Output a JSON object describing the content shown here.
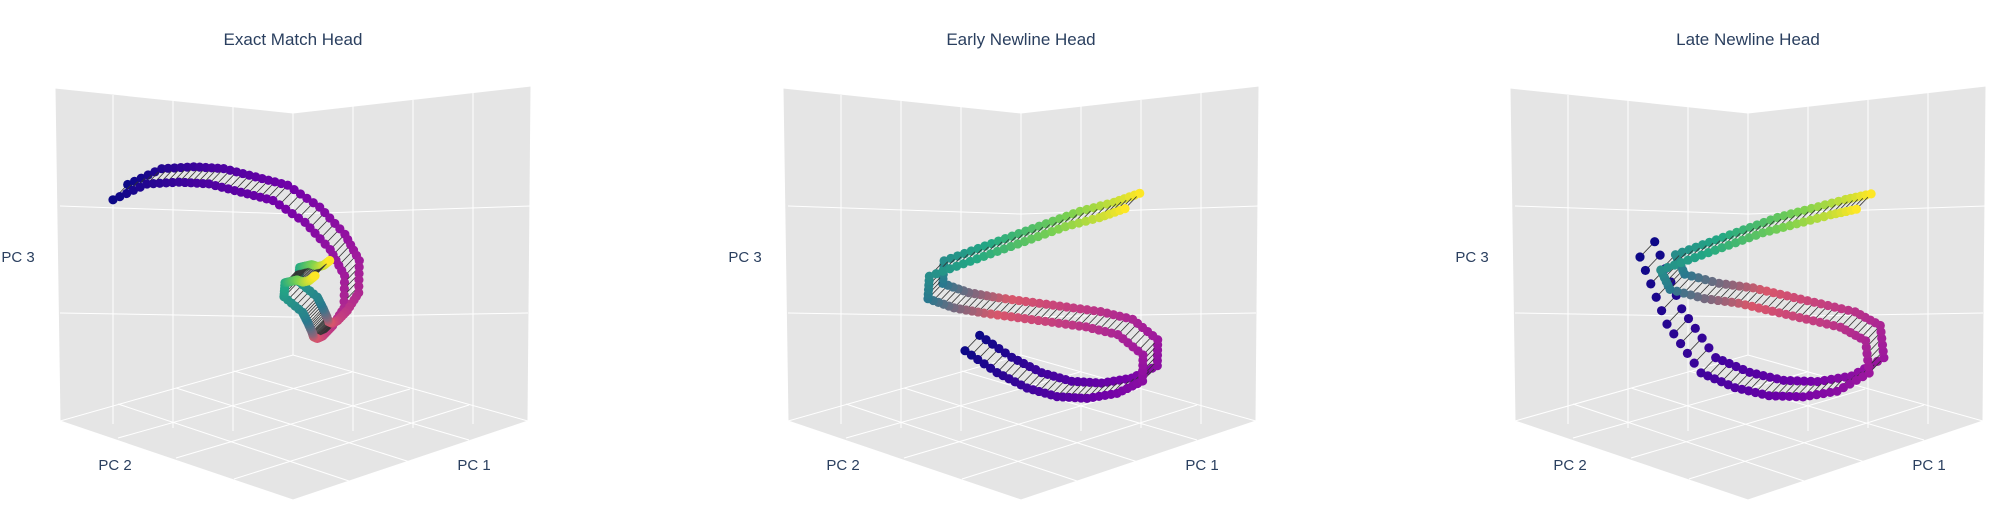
{
  "figure": {
    "panels": [
      {
        "title": "Exact Match Head",
        "axes": {
          "x": "PC 1",
          "y": "PC 2",
          "z": "PC 3"
        }
      },
      {
        "title": "Early Newline Head",
        "axes": {
          "x": "PC 1",
          "y": "PC 2",
          "z": "PC 3"
        }
      },
      {
        "title": "Late Newline Head",
        "axes": {
          "x": "PC 1",
          "y": "PC 2",
          "z": "PC 3"
        }
      }
    ],
    "colors": {
      "scene_background": "#e5e5e5",
      "grid": "#ffffff",
      "connector": "#333333",
      "colorscale": "viridis-plasma"
    }
  },
  "chart_data": [
    {
      "type": "scatter",
      "title": "Exact Match Head",
      "xlabel": "PC 1",
      "ylabel": "PC 2",
      "zlabel": "PC 3",
      "grid": true,
      "series": [
        {
          "values": [
            [
              1,
              9.6,
              7.0
            ],
            [
              2.0,
              9.0,
              7.5
            ],
            [
              3.0,
              8.5,
              7.6
            ],
            [
              4.0,
              8.1,
              7.6
            ],
            [
              5.0,
              7.6,
              7.4
            ],
            [
              6.0,
              7.1,
              7.2
            ],
            [
              7.0,
              6.6,
              6.6
            ],
            [
              7.6,
              6.0,
              5.8
            ],
            [
              7.8,
              5.5,
              5.0
            ],
            [
              7.5,
              5.2,
              4.0
            ],
            [
              6.8,
              5.0,
              3.4
            ],
            [
              6.0,
              4.6,
              3.0
            ],
            [
              5.2,
              4.0,
              2.8
            ],
            [
              4.3,
              3.2,
              2.7
            ],
            [
              3.5,
              2.4,
              2.7
            ],
            [
              2.6,
              1.6,
              2.8
            ],
            [
              1.8,
              1.0,
              3.0
            ],
            [
              0.5,
              0.5,
              3.3
            ],
            [
              1.0,
              1.0,
              3.8
            ],
            [
              2.0,
              1.8,
              4.0
            ],
            [
              3.0,
              2.6,
              4.2
            ],
            [
              4.0,
              3.4,
              4.3
            ],
            [
              5.0,
              4.2,
              4.5
            ],
            [
              6.0,
              5.0,
              4.8
            ]
          ]
        }
      ]
    },
    {
      "type": "scatter",
      "title": "Early Newline Head",
      "xlabel": "PC 1",
      "ylabel": "PC 2",
      "zlabel": "PC 3",
      "grid": true,
      "series": [
        {
          "values": [
            [
              2.0,
              4.5,
              2.2
            ],
            [
              3.0,
              4.0,
              1.6
            ],
            [
              4.0,
              3.6,
              1.2
            ],
            [
              5.0,
              3.2,
              1.0
            ],
            [
              6.0,
              2.8,
              1.0
            ],
            [
              7.0,
              2.4,
              1.2
            ],
            [
              7.8,
              2.0,
              1.6
            ],
            [
              8.0,
              2.2,
              2.4
            ],
            [
              7.4,
              2.8,
              3.0
            ],
            [
              6.5,
              3.4,
              3.2
            ],
            [
              5.5,
              4.0,
              3.3
            ],
            [
              4.5,
              4.6,
              3.4
            ],
            [
              3.5,
              5.2,
              3.5
            ],
            [
              2.5,
              5.6,
              3.6
            ],
            [
              1.5,
              5.8,
              3.8
            ],
            [
              1.2,
              5.4,
              4.4
            ],
            [
              2.2,
              4.8,
              4.8
            ],
            [
              3.2,
              4.2,
              5.2
            ],
            [
              4.2,
              3.6,
              5.6
            ],
            [
              5.2,
              3.0,
              6.0
            ],
            [
              6.2,
              2.4,
              6.3
            ],
            [
              7.0,
              2.0,
              6.6
            ]
          ]
        }
      ]
    },
    {
      "type": "scatter",
      "title": "Late Newline Head",
      "xlabel": "PC 1",
      "ylabel": "PC 2",
      "zlabel": "PC 3",
      "grid": true,
      "series": [
        {
          "values": [
            [
              1.0,
              6.0,
              5.0
            ],
            [
              1.5,
              5.2,
              3.0
            ],
            [
              2.5,
              4.6,
              1.6
            ],
            [
              3.5,
              4.0,
              1.2
            ],
            [
              4.5,
              3.4,
              1.0
            ],
            [
              5.5,
              2.8,
              1.0
            ],
            [
              6.5,
              2.2,
              1.2
            ],
            [
              7.6,
              1.8,
              1.8
            ],
            [
              7.8,
              2.2,
              2.8
            ],
            [
              7.2,
              2.8,
              3.2
            ],
            [
              6.2,
              3.4,
              3.4
            ],
            [
              5.2,
              4.0,
              3.6
            ],
            [
              4.2,
              4.6,
              3.8
            ],
            [
              3.2,
              5.2,
              3.9
            ],
            [
              2.0,
              5.6,
              4.1
            ],
            [
              1.4,
              5.4,
              4.6
            ],
            [
              2.4,
              4.8,
              5.0
            ],
            [
              3.4,
              4.2,
              5.4
            ],
            [
              4.4,
              3.6,
              5.8
            ],
            [
              5.4,
              3.0,
              6.1
            ],
            [
              6.4,
              2.4,
              6.4
            ],
            [
              7.2,
              2.0,
              6.6
            ]
          ]
        }
      ]
    }
  ]
}
